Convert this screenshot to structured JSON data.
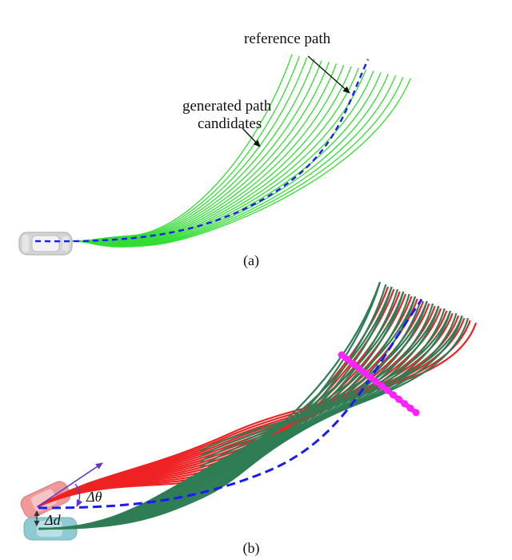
{
  "panel_a": {
    "caption": "(a)",
    "reference_label": "reference path",
    "candidates_label_line1": "generated path",
    "candidates_label_line2": "candidates",
    "colors": {
      "candidates": "#33dd33",
      "reference": "#1a1aff",
      "car": "#cccccc"
    }
  },
  "panel_b": {
    "caption": "(b)",
    "delta_theta_label": "Δθ",
    "delta_d_label": "Δd",
    "colors": {
      "red_paths": "#ee2222",
      "green_paths": "#2e7d55",
      "reference": "#1a1aff",
      "marker": "#ff22ff",
      "angle_arrow": "#6633cc",
      "car_red": "#ee8888",
      "car_cyan": "#88c8d0"
    }
  }
}
